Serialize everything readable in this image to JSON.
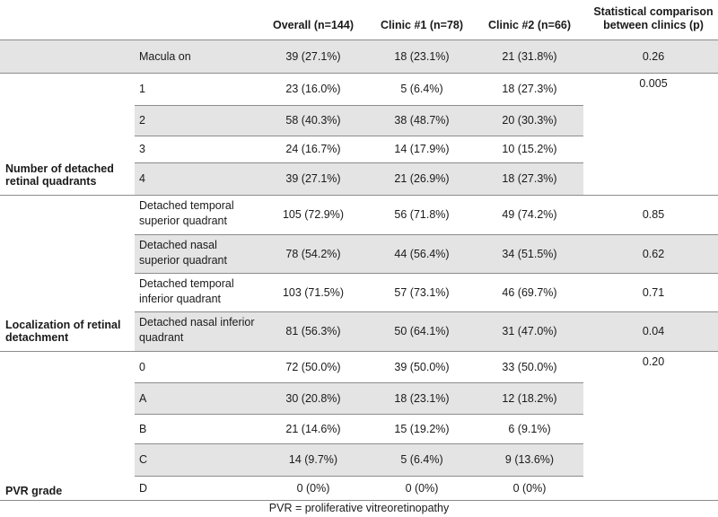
{
  "headers": {
    "overall": "Overall (n=144)",
    "clinic1": "Clinic #1 (n=78)",
    "clinic2": "Clinic #2 (n=66)",
    "pvalue_line1": "Statistical comparison",
    "pvalue_line2": "between clinics (p)"
  },
  "groups": {
    "quadrants_line1": "Number of detached",
    "quadrants_line2": "retinal quadrants",
    "local_line1": "Localization of retinal",
    "local_line2": "detachment",
    "pvr": "PVR grade"
  },
  "rows": [
    {
      "sub1": "Macula on",
      "sub2": "",
      "overall": "39 (27.1%)",
      "clinic1": "18 (23.1%)",
      "clinic2": "21 (31.8%)",
      "p": "0.26"
    },
    {
      "sub1": "1",
      "sub2": "",
      "overall": "23 (16.0%)",
      "clinic1": "5 (6.4%)",
      "clinic2": "18 (27.3%)",
      "p": "0.005"
    },
    {
      "sub1": "2",
      "sub2": "",
      "overall": "58 (40.3%)",
      "clinic1": "38 (48.7%)",
      "clinic2": "20 (30.3%)",
      "p": ""
    },
    {
      "sub1": "3",
      "sub2": "",
      "overall": "24 (16.7%)",
      "clinic1": "14 (17.9%)",
      "clinic2": "10 (15.2%)",
      "p": ""
    },
    {
      "sub1": "4",
      "sub2": "",
      "overall": "39 (27.1%)",
      "clinic1": "21 (26.9%)",
      "clinic2": "18 (27.3%)",
      "p": ""
    },
    {
      "sub1": "Detached temporal",
      "sub2": "superior quadrant",
      "overall": "105 (72.9%)",
      "clinic1": "56 (71.8%)",
      "clinic2": "49 (74.2%)",
      "p": "0.85"
    },
    {
      "sub1": "Detached nasal",
      "sub2": "superior quadrant",
      "overall": "78 (54.2%)",
      "clinic1": "44 (56.4%)",
      "clinic2": "34 (51.5%)",
      "p": "0.62"
    },
    {
      "sub1": "Detached temporal",
      "sub2": "inferior quadrant",
      "overall": "103 (71.5%)",
      "clinic1": "57 (73.1%)",
      "clinic2": "46 (69.7%)",
      "p": "0.71"
    },
    {
      "sub1": "Detached nasal inferior",
      "sub2": "quadrant",
      "overall": "81 (56.3%)",
      "clinic1": "50 (64.1%)",
      "clinic2": "31 (47.0%)",
      "p": "0.04"
    },
    {
      "sub1": "0",
      "sub2": "",
      "overall": "72 (50.0%)",
      "clinic1": "39 (50.0%)",
      "clinic2": "33 (50.0%)",
      "p": "0.20"
    },
    {
      "sub1": "A",
      "sub2": "",
      "overall": "30 (20.8%)",
      "clinic1": "18 (23.1%)",
      "clinic2": "12 (18.2%)",
      "p": ""
    },
    {
      "sub1": "B",
      "sub2": "",
      "overall": "21 (14.6%)",
      "clinic1": "15 (19.2%)",
      "clinic2": "6 (9.1%)",
      "p": ""
    },
    {
      "sub1": "C",
      "sub2": "",
      "overall": "14 (9.7%)",
      "clinic1": "5 (6.4%)",
      "clinic2": "9 (13.6%)",
      "p": ""
    },
    {
      "sub1": "D",
      "sub2": "",
      "overall": "0 (0%)",
      "clinic1": "0 (0%)",
      "clinic2": "0 (0%)",
      "p": ""
    }
  ],
  "caption": "PVR = proliferative vitreoretinopathy",
  "colors": {
    "shade": "#e4e4e4",
    "rule": "#8c8c8c"
  }
}
